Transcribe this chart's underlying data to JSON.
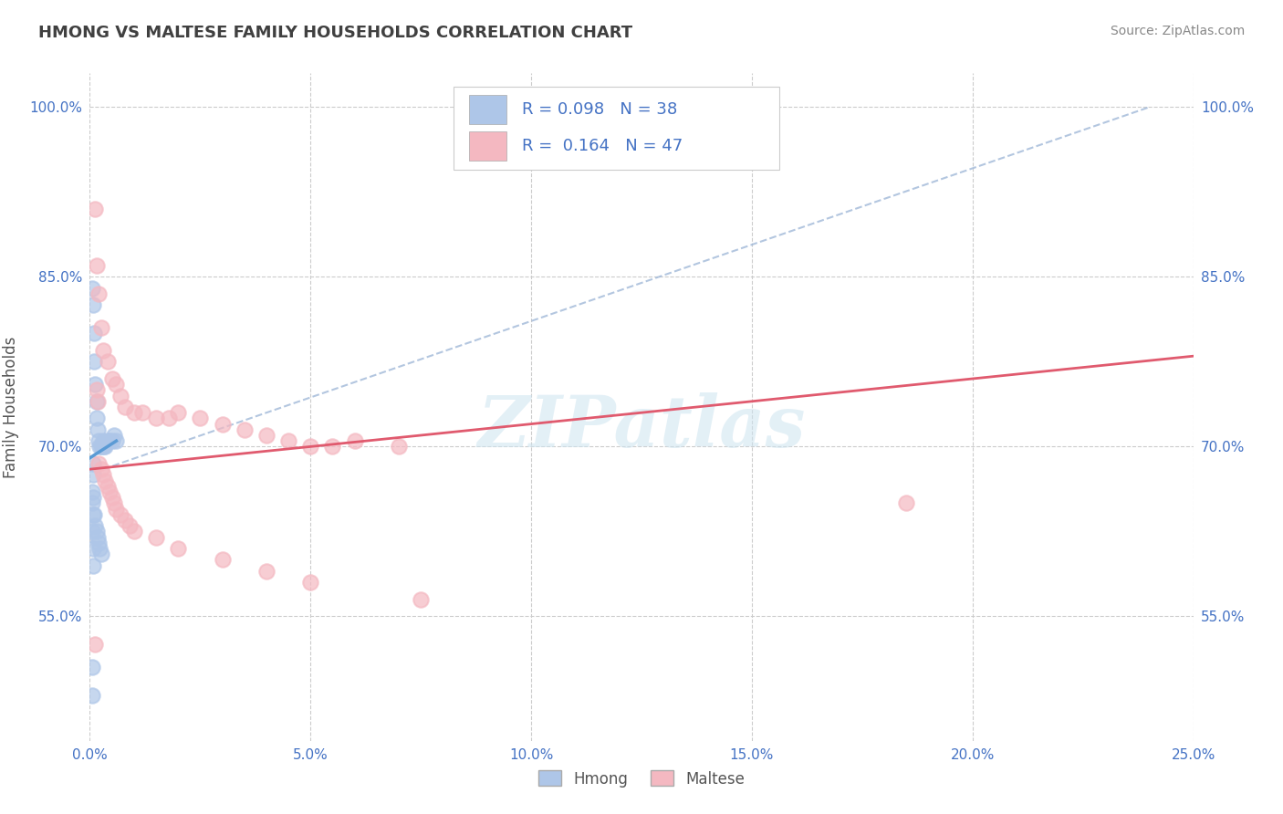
{
  "title": "HMONG VS MALTESE FAMILY HOUSEHOLDS CORRELATION CHART",
  "source": "Source: ZipAtlas.com",
  "ylabel": "Family Households",
  "xlim": [
    0.0,
    25.0
  ],
  "ylim": [
    44.0,
    103.0
  ],
  "x_ticks": [
    0.0,
    5.0,
    10.0,
    15.0,
    20.0,
    25.0
  ],
  "x_tick_labels": [
    "0.0%",
    "5.0%",
    "10.0%",
    "15.0%",
    "20.0%",
    "25.0%"
  ],
  "y_ticks": [
    55.0,
    70.0,
    85.0,
    100.0
  ],
  "y_tick_labels": [
    "55.0%",
    "70.0%",
    "85.0%",
    "100.0%"
  ],
  "hmong_R": 0.098,
  "hmong_N": 38,
  "maltese_R": 0.164,
  "maltese_N": 47,
  "hmong_color": "#aec6e8",
  "maltese_color": "#f4b8c1",
  "hmong_trend_color": "#5b9bd5",
  "maltese_trend_color": "#e05a6e",
  "ref_line_color": "#a0b8d8",
  "watermark": "ZIPatlas",
  "hmong_x": [
    0.05,
    0.08,
    0.1,
    0.1,
    0.12,
    0.15,
    0.15,
    0.18,
    0.2,
    0.22,
    0.25,
    0.28,
    0.3,
    0.32,
    0.35,
    0.4,
    0.45,
    0.5,
    0.55,
    0.6,
    0.08,
    0.1,
    0.12,
    0.15,
    0.18,
    0.2,
    0.22,
    0.25,
    0.05,
    0.06,
    0.07,
    0.08,
    0.05,
    0.06,
    0.07,
    0.06,
    0.07,
    0.08
  ],
  "hmong_y": [
    84.0,
    82.5,
    80.0,
    77.5,
    75.5,
    74.0,
    72.5,
    71.5,
    70.5,
    70.0,
    70.0,
    70.0,
    70.5,
    70.0,
    70.0,
    70.5,
    70.5,
    70.5,
    71.0,
    70.5,
    65.5,
    64.0,
    63.0,
    62.5,
    62.0,
    61.5,
    61.0,
    60.5,
    50.5,
    48.0,
    68.5,
    67.5,
    66.0,
    65.0,
    64.0,
    62.5,
    61.0,
    59.5
  ],
  "maltese_x": [
    0.12,
    0.15,
    0.2,
    0.25,
    0.3,
    0.4,
    0.5,
    0.6,
    0.7,
    0.8,
    1.0,
    1.2,
    1.5,
    1.8,
    2.0,
    2.5,
    3.0,
    3.5,
    4.0,
    4.5,
    5.0,
    5.5,
    6.0,
    7.0,
    0.2,
    0.25,
    0.3,
    0.35,
    0.4,
    0.45,
    0.5,
    0.55,
    0.6,
    0.7,
    0.8,
    0.9,
    1.0,
    1.5,
    2.0,
    3.0,
    4.0,
    5.0,
    7.5,
    18.5,
    0.15,
    0.18,
    0.12
  ],
  "maltese_y": [
    91.0,
    86.0,
    83.5,
    80.5,
    78.5,
    77.5,
    76.0,
    75.5,
    74.5,
    73.5,
    73.0,
    73.0,
    72.5,
    72.5,
    73.0,
    72.5,
    72.0,
    71.5,
    71.0,
    70.5,
    70.0,
    70.0,
    70.5,
    70.0,
    68.5,
    68.0,
    67.5,
    67.0,
    66.5,
    66.0,
    65.5,
    65.0,
    64.5,
    64.0,
    63.5,
    63.0,
    62.5,
    62.0,
    61.0,
    60.0,
    59.0,
    58.0,
    56.5,
    65.0,
    75.0,
    74.0,
    52.5
  ],
  "ref_line_x": [
    0.3,
    24.0
  ],
  "ref_line_y": [
    68.0,
    100.0
  ]
}
